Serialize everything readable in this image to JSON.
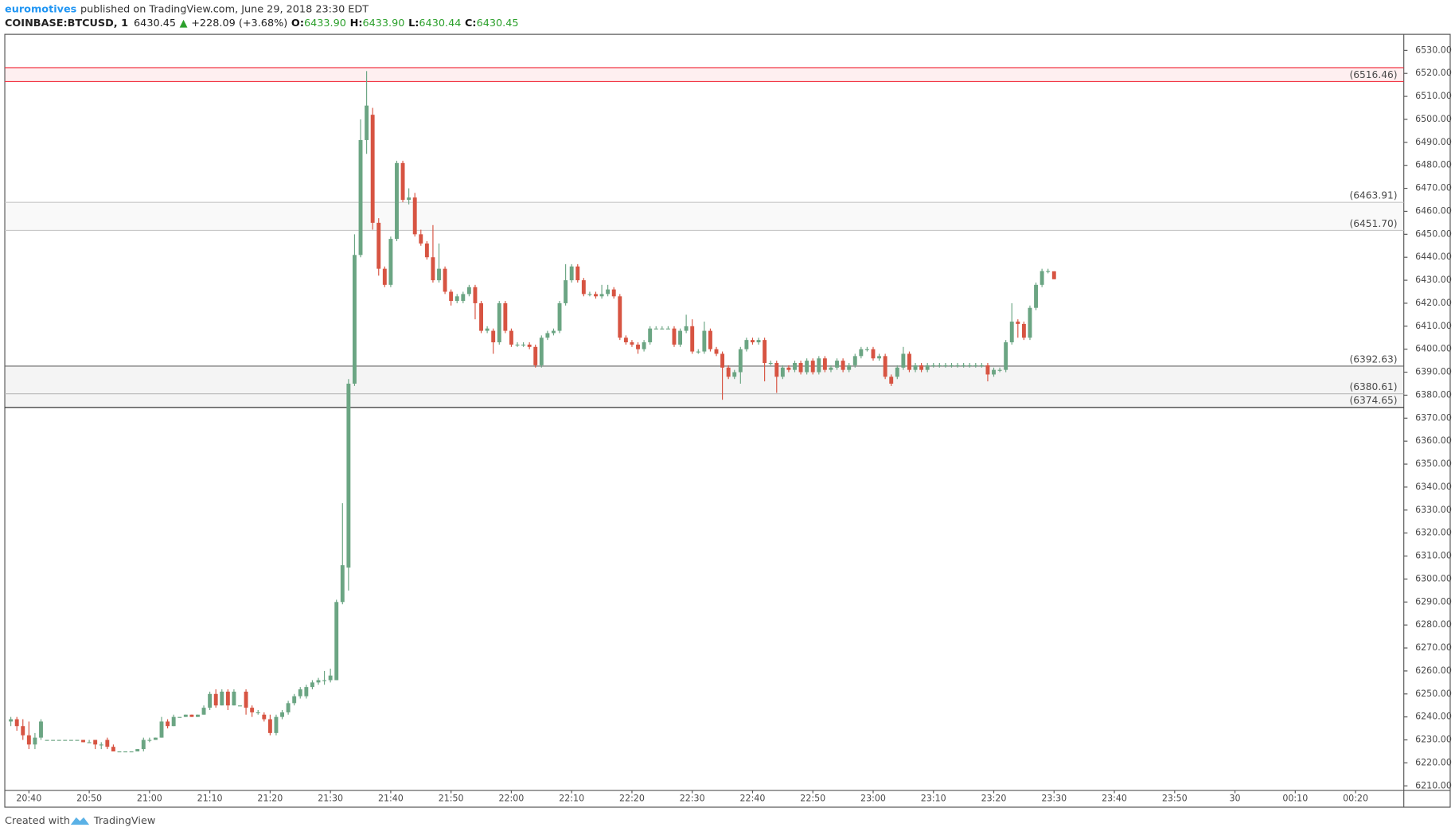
{
  "header": {
    "author": "euromotives",
    "published": "published on TradingView.com, June 29, 2018 23:30 EDT"
  },
  "footer": {
    "text": "Created with",
    "brand": "TradingView"
  },
  "chart_data": {
    "type": "candlestick",
    "symbol": "COINBASE:BTCUSD, 1",
    "last": "6430.45",
    "change_arrow": "▲",
    "change": "+228.09 (+3.68%)",
    "ohlc": [
      {
        "label": "O:",
        "value": "6433.90"
      },
      {
        "label": "H:",
        "value": "6433.90"
      },
      {
        "label": "L:",
        "value": "6430.44"
      },
      {
        "label": "C:",
        "value": "6430.45"
      }
    ],
    "up_color": "#6ba583",
    "down_color": "#d75442",
    "grid": false,
    "xlim": [
      "20:36",
      "00:28"
    ],
    "xticks": [
      "20:40",
      "20:50",
      "21:00",
      "21:10",
      "21:20",
      "21:30",
      "21:40",
      "21:50",
      "22:00",
      "22:10",
      "22:20",
      "22:30",
      "22:40",
      "22:50",
      "23:00",
      "23:10",
      "23:20",
      "23:30",
      "23:40",
      "23:50",
      {
        "value": "00:00",
        "label": "30"
      },
      "00:10",
      "00:20"
    ],
    "ylim": [
      6208,
      6537
    ],
    "yticks": [
      {
        "value": 6210,
        "label": "6210.00"
      },
      {
        "value": 6220,
        "label": "6220.00"
      },
      {
        "value": 6230,
        "label": "6230.00"
      },
      {
        "value": 6240,
        "label": "6240.00"
      },
      {
        "value": 6250,
        "label": "6250.00"
      },
      {
        "value": 6260,
        "label": "6260.00"
      },
      {
        "value": 6270,
        "label": "6270.00"
      },
      {
        "value": 6280,
        "label": "6280.00"
      },
      {
        "value": 6290,
        "label": "6290.00"
      },
      {
        "value": 6300,
        "label": "6300.00"
      },
      {
        "value": 6310,
        "label": "6310.00"
      },
      {
        "value": 6320,
        "label": "6320.00"
      },
      {
        "value": 6330,
        "label": "6330.00"
      },
      {
        "value": 6340,
        "label": "6340.00"
      },
      {
        "value": 6350,
        "label": "6350.00"
      },
      {
        "value": 6360,
        "label": "6360.00"
      },
      {
        "value": 6370,
        "label": "6370.00"
      },
      {
        "value": 6380,
        "label": "6380.00"
      },
      {
        "value": 6390,
        "label": "6390.00"
      },
      {
        "value": 6400,
        "label": "6400.00"
      },
      {
        "value": 6410,
        "label": "6410.00"
      },
      {
        "value": 6420,
        "label": "6420.00"
      },
      {
        "value": 6430,
        "label": "6430.00"
      },
      {
        "value": 6440,
        "label": "6440.00"
      },
      {
        "value": 6450,
        "label": "6450.00"
      },
      {
        "value": 6460,
        "label": "6460.00"
      },
      {
        "value": 6470,
        "label": "6470.00"
      },
      {
        "value": 6480,
        "label": "6480.00"
      },
      {
        "value": 6490,
        "label": "6490.00"
      },
      {
        "value": 6500,
        "label": "6500.00"
      },
      {
        "value": 6510,
        "label": "6510.00"
      },
      {
        "value": 6520,
        "label": "6520.00"
      },
      {
        "value": 6530,
        "label": "6530.00"
      }
    ],
    "zones": [
      {
        "fill": "#f23645",
        "opacity": 0.08,
        "top": {
          "value": 6522.5,
          "color": "#f23645"
        },
        "bottom": {
          "value": 6516.46,
          "label": "(6516.46)",
          "color": "#f23645"
        }
      },
      {
        "fill": "#b0b0b0",
        "opacity": 0.08,
        "top": {
          "value": 6463.91,
          "label": "(6463.91)",
          "color": "#c8c8c8"
        },
        "bottom": {
          "value": 6451.7,
          "label": "(6451.70)",
          "color": "#c8c8c8"
        }
      },
      {
        "fill": "#909090",
        "opacity": 0.1,
        "top": {
          "value": 6392.63,
          "label": "(6392.63)",
          "color": "#666666"
        },
        "bottom": {
          "value": 6374.65,
          "label": "(6374.65)",
          "color": "#333333"
        },
        "lines": [
          {
            "value": 6380.61,
            "label": "(6380.61)",
            "color": "#b8b8b8"
          }
        ]
      }
    ],
    "x": [
      "20:37",
      "20:38",
      "20:39",
      "20:40",
      "20:41",
      "20:42",
      "20:43",
      "20:44",
      "20:45",
      "20:46",
      "20:47",
      "20:48",
      "20:49",
      "20:50",
      "20:51",
      "20:52",
      "20:53",
      "20:54",
      "20:55",
      "20:56",
      "20:57",
      "20:58",
      "20:59",
      "21:00",
      "21:01",
      "21:02",
      "21:03",
      "21:04",
      "21:05",
      "21:06",
      "21:07",
      "21:08",
      "21:09",
      "21:10",
      "21:11",
      "21:12",
      "21:13",
      "21:14",
      "21:15",
      "21:16",
      "21:17",
      "21:18",
      "21:19",
      "21:20",
      "21:21",
      "21:22",
      "21:23",
      "21:24",
      "21:25",
      "21:26",
      "21:27",
      "21:28",
      "21:29",
      "21:30",
      "21:31",
      "21:32",
      "21:33",
      "21:34",
      "21:35",
      "21:36",
      "21:37",
      "21:38",
      "21:39",
      "21:40",
      "21:41",
      "21:42",
      "21:43",
      "21:44",
      "21:45",
      "21:46",
      "21:47",
      "21:48",
      "21:49",
      "21:50",
      "21:51",
      "21:52",
      "21:53",
      "21:54",
      "21:55",
      "21:56",
      "21:57",
      "21:58",
      "21:59",
      "22:00",
      "22:01",
      "22:02",
      "22:03",
      "22:04",
      "22:05",
      "22:06",
      "22:07",
      "22:08",
      "22:09",
      "22:10",
      "22:11",
      "22:12",
      "22:13",
      "22:14",
      "22:15",
      "22:16",
      "22:17",
      "22:18",
      "22:19",
      "22:20",
      "22:21",
      "22:22",
      "22:23",
      "22:24",
      "22:25",
      "22:26",
      "22:27",
      "22:28",
      "22:29",
      "22:30",
      "22:31",
      "22:32",
      "22:33",
      "22:34",
      "22:35",
      "22:36",
      "22:37",
      "22:38",
      "22:39",
      "22:40",
      "22:41",
      "22:42",
      "22:43",
      "22:44",
      "22:45",
      "22:46",
      "22:47",
      "22:48",
      "22:49",
      "22:50",
      "22:51",
      "22:52",
      "22:53",
      "22:54",
      "22:55",
      "22:56",
      "22:57",
      "22:58",
      "22:59",
      "23:00",
      "23:01",
      "23:02",
      "23:03",
      "23:04",
      "23:05",
      "23:06",
      "23:07",
      "23:08",
      "23:09",
      "23:10",
      "23:11",
      "23:12",
      "23:13",
      "23:14",
      "23:15",
      "23:16",
      "23:17",
      "23:18",
      "23:19",
      "23:20",
      "23:21",
      "23:22",
      "23:23",
      "23:24",
      "23:25",
      "23:26",
      "23:27",
      "23:28",
      "23:29",
      "23:30"
    ],
    "open": [
      6238,
      6239,
      6236,
      6232,
      6228,
      6231,
      6230,
      6230,
      6230,
      6230,
      6230,
      6230,
      6230,
      6229,
      6230,
      6228,
      6230,
      6227,
      6225,
      6225,
      6225,
      6225,
      6226,
      6230,
      6230,
      6231,
      6238,
      6236,
      6240,
      6240,
      6241,
      6240,
      6241,
      6244,
      6250,
      6245,
      6251,
      6245,
      6245,
      6251,
      6244,
      6242,
      6241,
      6239,
      6233,
      6240,
      6242,
      6246,
      6249,
      6249,
      6253,
      6255,
      6256,
      6256,
      6256,
      6290,
      6305,
      6385,
      6441,
      6491,
      6502,
      6455,
      6435,
      6428,
      6448,
      6481,
      6465,
      6466,
      6450,
      6446,
      6440,
      6430,
      6435,
      6425,
      6421,
      6421,
      6424,
      6427,
      6420,
      6408,
      6408,
      6403,
      6420,
      6408,
      6402,
      6402,
      6402,
      6401,
      6393,
      6405,
      6407,
      6408,
      6420,
      6430,
      6436,
      6430,
      6424,
      6424,
      6423,
      6424,
      6426,
      6423,
      6405,
      6403,
      6402,
      6400,
      6403,
      6409,
      6409,
      6409,
      6409,
      6402,
      6408,
      6410,
      6399,
      6399,
      6408,
      6400,
      6398,
      6392,
      6388,
      6390,
      6400,
      6404,
      6403,
      6404,
      6394,
      6394,
      6388,
      6392,
      6391,
      6394,
      6390,
      6395,
      6390,
      6396,
      6391,
      6392,
      6395,
      6391,
      6393,
      6397,
      6400,
      6400,
      6396,
      6397,
      6388,
      6388,
      6392,
      6398,
      6391,
      6393,
      6391,
      6393,
      6393,
      6393,
      6393,
      6393,
      6393,
      6393,
      6393,
      6393,
      6393,
      6389,
      6391,
      6391,
      6403,
      6412,
      6411,
      6405,
      6418,
      6428,
      6434,
      6433.9
    ],
    "high": [
      6240,
      6240,
      6239,
      6238,
      6233,
      6239,
      6230,
      6230,
      6230,
      6230,
      6230,
      6230,
      6230,
      6230,
      6230,
      6229,
      6231,
      6228,
      6225,
      6225,
      6225,
      6226,
      6231,
      6231,
      6231,
      6240,
      6239,
      6241,
      6240,
      6241,
      6241,
      6241,
      6245,
      6251,
      6252,
      6252,
      6252,
      6252,
      6245,
      6252,
      6245,
      6243,
      6242,
      6241,
      6241,
      6243,
      6247,
      6250,
      6253,
      6254,
      6256,
      6257,
      6260,
      6261,
      6291,
      6333,
      6387,
      6450,
      6500,
      6521,
      6505,
      6457,
      6436,
      6449,
      6482,
      6482,
      6470,
      6468,
      6452,
      6447,
      6454,
      6446,
      6436,
      6426,
      6424,
      6425,
      6428,
      6428,
      6421,
      6410,
      6409,
      6421,
      6421,
      6409,
      6403,
      6403,
      6403,
      6402,
      6406,
      6408,
      6409,
      6421,
      6437,
      6437,
      6437,
      6431,
      6425,
      6425,
      6428,
      6428,
      6427,
      6424,
      6406,
      6404,
      6403,
      6404,
      6410,
      6410,
      6410,
      6410,
      6410,
      6409,
      6415,
      6413,
      6400,
      6412,
      6409,
      6401,
      6399,
      6393,
      6391,
      6401,
      6405,
      6405,
      6405,
      6405,
      6395,
      6395,
      6393,
      6393,
      6395,
      6395,
      6396,
      6396,
      6397,
      6397,
      6393,
      6396,
      6396,
      6394,
      6398,
      6401,
      6401,
      6401,
      6398,
      6398,
      6389,
      6393,
      6401,
      6399,
      6394,
      6394,
      6394,
      6394,
      6394,
      6394,
      6394,
      6394,
      6394,
      6394,
      6394,
      6394,
      6394,
      6392,
      6392,
      6404,
      6420,
      6413,
      6412,
      6419,
      6429,
      6435,
      6435,
      6433.9
    ],
    "low": [
      6236,
      6234,
      6230,
      6226,
      6226,
      6230,
      6230,
      6230,
      6230,
      6230,
      6230,
      6230,
      6229,
      6229,
      6226,
      6226,
      6226,
      6225,
      6225,
      6225,
      6225,
      6225,
      6225,
      6229,
      6230,
      6231,
      6235,
      6236,
      6240,
      6240,
      6240,
      6240,
      6241,
      6243,
      6244,
      6245,
      6243,
      6245,
      6245,
      6241,
      6240,
      6241,
      6238,
      6232,
      6232,
      6239,
      6241,
      6245,
      6248,
      6248,
      6252,
      6254,
      6254,
      6255,
      6256,
      6289,
      6295,
      6384,
      6440,
      6485,
      6452,
      6432,
      6427,
      6427,
      6447,
      6464,
      6463,
      6449,
      6445,
      6439,
      6429,
      6429,
      6424,
      6419,
      6420,
      6420,
      6423,
      6413,
      6407,
      6407,
      6398,
      6402,
      6407,
      6401,
      6401,
      6401,
      6400,
      6392,
      6392,
      6404,
      6406,
      6407,
      6419,
      6429,
      6429,
      6423,
      6423,
      6422,
      6422,
      6423,
      6422,
      6404,
      6402,
      6401,
      6398,
      6399,
      6402,
      6409,
      6409,
      6409,
      6401,
      6401,
      6407,
      6398,
      6398,
      6398,
      6399,
      6397,
      6378,
      6387,
      6387,
      6385,
      6399,
      6402,
      6402,
      6386,
      6393,
      6381,
      6387,
      6390,
      6390,
      6389,
      6389,
      6389,
      6389,
      6390,
      6390,
      6391,
      6390,
      6390,
      6392,
      6396,
      6399,
      6395,
      6395,
      6387,
      6384,
      6387,
      6391,
      6390,
      6390,
      6390,
      6390,
      6392,
      6392,
      6392,
      6392,
      6392,
      6392,
      6392,
      6392,
      6392,
      6386,
      6388,
      6390,
      6390,
      6402,
      6405,
      6404,
      6404,
      6417,
      6427,
      6433,
      6430.44
    ],
    "close": [
      6239,
      6236,
      6232,
      6228,
      6231,
      6238,
      6230,
      6230,
      6230,
      6230,
      6230,
      6230,
      6229,
      6229,
      6228,
      6228,
      6227,
      6225,
      6225,
      6225,
      6225,
      6226,
      6230,
      6230,
      6231,
      6238,
      6236,
      6240,
      6240,
      6241,
      6240,
      6241,
      6244,
      6250,
      6245,
      6251,
      6245,
      6251,
      6245,
      6244,
      6242,
      6242,
      6239,
      6233,
      6240,
      6242,
      6246,
      6249,
      6252,
      6253,
      6255,
      6256,
      6256,
      6258,
      6290,
      6306,
      6385,
      6441,
      6491,
      6506,
      6455,
      6435,
      6428,
      6448,
      6481,
      6465,
      6466,
      6450,
      6446,
      6440,
      6430,
      6435,
      6425,
      6421,
      6423,
      6424,
      6427,
      6420,
      6408,
      6409,
      6403,
      6420,
      6408,
      6402,
      6402,
      6402,
      6401,
      6393,
      6405,
      6407,
      6408,
      6420,
      6430,
      6436,
      6430,
      6424,
      6424,
      6423,
      6424,
      6426,
      6423,
      6405,
      6403,
      6402,
      6400,
      6403,
      6409,
      6409,
      6409,
      6409,
      6402,
      6408,
      6410,
      6399,
      6399,
      6408,
      6400,
      6398,
      6392,
      6388,
      6390,
      6400,
      6404,
      6403,
      6404,
      6394,
      6394,
      6388,
      6392,
      6391,
      6394,
      6390,
      6395,
      6390,
      6396,
      6391,
      6392,
      6395,
      6391,
      6393,
      6397,
      6400,
      6400,
      6396,
      6397,
      6388,
      6385,
      6392,
      6398,
      6391,
      6393,
      6391,
      6393,
      6393,
      6393,
      6393,
      6393,
      6393,
      6393,
      6393,
      6393,
      6393,
      6389,
      6391,
      6391,
      6403,
      6412,
      6411,
      6405,
      6418,
      6428,
      6434,
      6434,
      6430.45
    ]
  }
}
